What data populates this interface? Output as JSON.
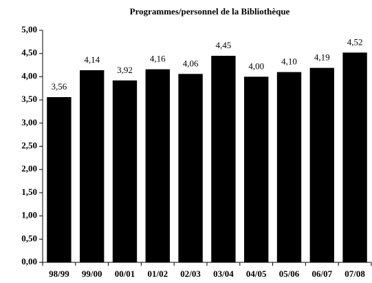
{
  "chart_data": {
    "type": "bar",
    "title": "Programmes/personnel de la Bibliothèque",
    "categories": [
      "98/99",
      "99/00",
      "00/01",
      "01/02",
      "02/03",
      "03/04",
      "04/05",
      "05/06",
      "06/07",
      "07/08"
    ],
    "values": [
      3.56,
      4.14,
      3.92,
      4.16,
      4.06,
      4.45,
      4.0,
      4.1,
      4.19,
      4.52
    ],
    "value_labels": [
      "3,56",
      "4,14",
      "3,92",
      "4,16",
      "4,06",
      "4,45",
      "4,00",
      "4,10",
      "4,19",
      "4,52"
    ],
    "color": "#000000",
    "ylim": [
      0,
      5
    ],
    "yticks": [
      {
        "value": 0,
        "label": "0,00"
      },
      {
        "value": 0.5,
        "label": "0,50"
      },
      {
        "value": 1,
        "label": "1,00"
      },
      {
        "value": 1.5,
        "label": "1,50"
      },
      {
        "value": 2,
        "label": "2,00"
      },
      {
        "value": 2.5,
        "label": "2,50"
      },
      {
        "value": 3,
        "label": "3,00"
      },
      {
        "value": 3.5,
        "label": "3,50"
      },
      {
        "value": 4,
        "label": "4,00"
      },
      {
        "value": 4.5,
        "label": "4,50"
      },
      {
        "value": 5,
        "label": "5,00"
      }
    ],
    "grid": false
  }
}
